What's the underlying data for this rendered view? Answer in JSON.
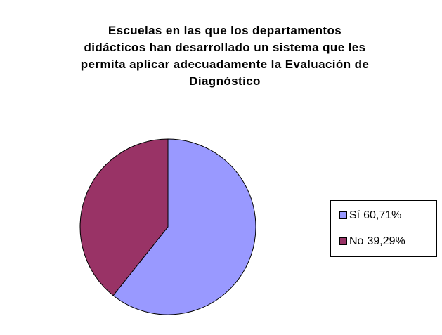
{
  "chart_data": {
    "type": "pie",
    "title": "Escuelas en las que los departamentos didácticos han desarrollado un sistema que les permita aplicar adecuadamente la Evaluación de Diagnóstico",
    "categories": [
      "Sí",
      "No"
    ],
    "values": [
      60.71,
      39.29
    ],
    "value_labels": [
      "60,71%",
      "39,29%"
    ],
    "colors": [
      "#9999ff",
      "#993366"
    ],
    "legend": "right"
  }
}
